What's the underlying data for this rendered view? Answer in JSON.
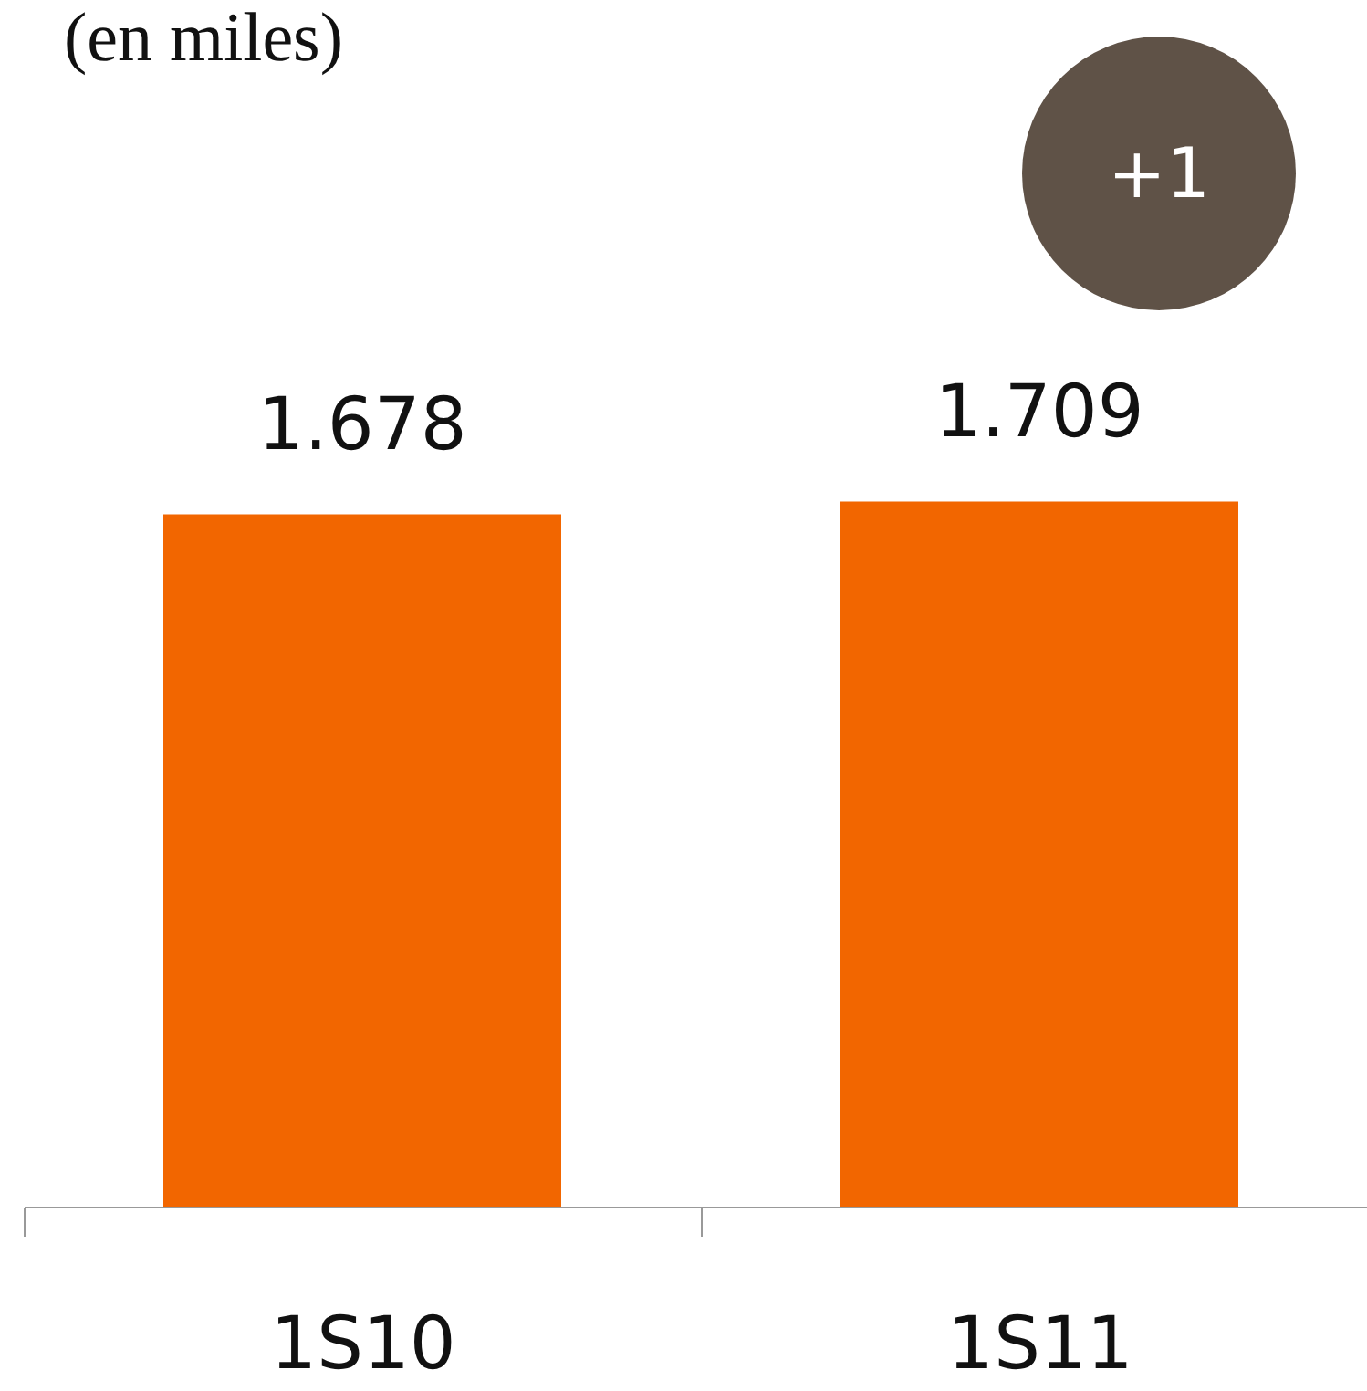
{
  "chart_data": {
    "type": "bar",
    "title": "(en miles)",
    "categories": [
      "1S10",
      "1S11"
    ],
    "values": [
      1678,
      1709
    ],
    "value_labels": [
      "1.678",
      "1.709"
    ],
    "color": "#f26600",
    "annotations": [
      "+1"
    ]
  }
}
